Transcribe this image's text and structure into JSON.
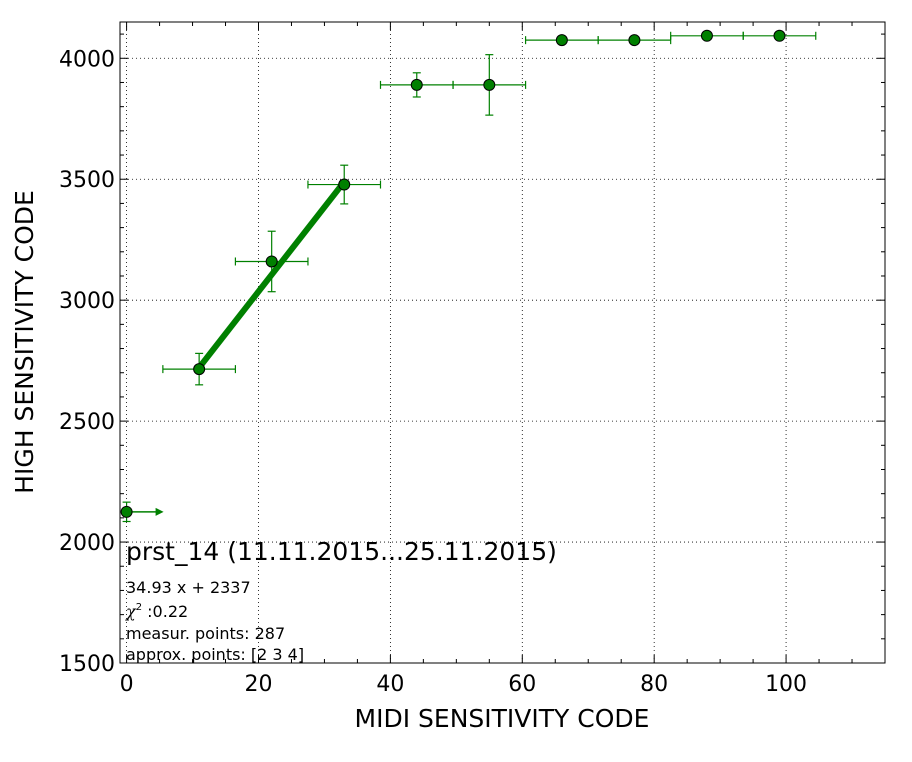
{
  "chart_data": {
    "type": "scatter",
    "title": "prst_14 (11.11.2015...25.11.2015)",
    "xlabel": "MIDI SENSITIVITY CODE",
    "ylabel": "HIGH SENSITIVITY CODE",
    "xlim": [
      -1,
      115
    ],
    "ylim": [
      1500,
      4150
    ],
    "xticks": [
      0,
      20,
      40,
      60,
      80,
      100
    ],
    "yticks": [
      1500,
      2000,
      2500,
      3000,
      3500,
      4000
    ],
    "xtick_labels": [
      "0",
      "20",
      "40",
      "60",
      "80",
      "100"
    ],
    "ytick_labels": [
      "1500",
      "2000",
      "2500",
      "3000",
      "3500",
      "4000"
    ],
    "grid": true,
    "points": [
      {
        "x": 0,
        "y": 2125,
        "xerr": 0,
        "yerr": 40,
        "arrow_right": true
      },
      {
        "x": 11,
        "y": 2715,
        "xerr": 5.5,
        "yerr": 65
      },
      {
        "x": 22,
        "y": 3160,
        "xerr": 5.5,
        "yerr": 125
      },
      {
        "x": 33,
        "y": 3478,
        "xerr": 5.5,
        "yerr": 80
      },
      {
        "x": 44,
        "y": 3890,
        "xerr": 5.5,
        "yerr": 50
      },
      {
        "x": 55,
        "y": 3890,
        "xerr": 5.5,
        "yerr": 125
      },
      {
        "x": 66,
        "y": 4075,
        "xerr": 5.5,
        "yerr": 0
      },
      {
        "x": 77,
        "y": 4075,
        "xerr": 5.5,
        "yerr": 0
      },
      {
        "x": 88,
        "y": 4093,
        "xerr": 5.5,
        "yerr": 0
      },
      {
        "x": 99,
        "y": 4093,
        "xerr": 5.5,
        "yerr": 0
      }
    ],
    "fit_line": {
      "slope": 34.93,
      "intercept": 2337,
      "x_range": [
        11,
        33
      ]
    },
    "annotations": {
      "fit_equation": "34.93 x + 2337",
      "chi2_symbol": "χ",
      "chi2_sup": "2",
      "chi2_value": " :0.22",
      "measur_points": "measur. points: 287",
      "approx_points": "approx. points: [2 3 4]"
    },
    "colors": {
      "series": "#008000",
      "marker_edge": "#000000",
      "grid": "#000000"
    }
  }
}
